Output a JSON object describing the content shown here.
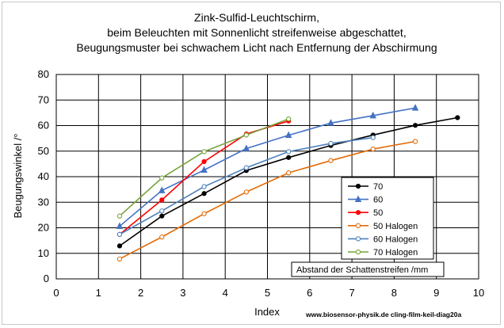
{
  "chart_data": {
    "type": "line",
    "title_lines": [
      "Zink-Sulfid-Leuchtschirm,",
      "beim Beleuchten mit Sonnenlicht streifenweise abgeschattet,",
      "Beugungsmuster bei schwachem Licht nach Entfernung der Abschirmung"
    ],
    "xlabel": "Index",
    "ylabel": "Beugungswinkel /°",
    "xlim": [
      0,
      10
    ],
    "ylim": [
      0,
      80
    ],
    "x_ticks": [
      "0",
      "1",
      "2",
      "3",
      "4",
      "5",
      "6",
      "7",
      "8",
      "9",
      "10"
    ],
    "y_ticks": [
      "0",
      "10",
      "20",
      "30",
      "40",
      "50",
      "60",
      "70",
      "80"
    ],
    "grid": true,
    "legend_position": "right",
    "annotation": "Abstand der Schattenstreifen /mm",
    "footer": "www.biosensor-physik.de  cling-film-keil-diag20a",
    "series": [
      {
        "name": "70",
        "color": "#000000",
        "marker": "circle-filled",
        "x": [
          1.5,
          2.5,
          3.5,
          4.5,
          5.5,
          6.5,
          7.5,
          8.5,
          9.5
        ],
        "y": [
          12.9,
          24.6,
          33.4,
          42.4,
          47.5,
          52.2,
          56.3,
          60.1,
          63.1
        ]
      },
      {
        "name": "60",
        "color": "#4472c4",
        "marker": "triangle-filled",
        "x": [
          1.5,
          2.5,
          3.5,
          4.5,
          5.5,
          6.5,
          7.5,
          8.5
        ],
        "y": [
          20.6,
          34.6,
          42.6,
          51.0,
          56.2,
          61.0,
          63.9,
          66.9
        ]
      },
      {
        "name": "50",
        "color": "#ff0000",
        "marker": "circle-filled",
        "x": [
          1.5,
          2.5,
          3.5,
          4.5,
          5.5
        ],
        "y": [
          17.4,
          30.9,
          45.9,
          56.7,
          61.8
        ]
      },
      {
        "name": "50 Halogen",
        "color": "#e36c09",
        "marker": "circle-open",
        "x": [
          1.5,
          2.5,
          3.5,
          4.5,
          5.5,
          6.5,
          7.5,
          8.5
        ],
        "y": [
          7.8,
          16.4,
          25.5,
          34.0,
          41.5,
          46.3,
          50.8,
          53.8
        ]
      },
      {
        "name": "60 Halogen",
        "color": "#4f81bd",
        "marker": "circle-open",
        "x": [
          1.5,
          2.5,
          3.5,
          4.5,
          5.5,
          6.5,
          7.5
        ],
        "y": [
          17.4,
          26.6,
          36.1,
          43.5,
          49.8,
          53.0,
          55.3
        ]
      },
      {
        "name": "70 Halogen",
        "color": "#77a23a",
        "marker": "circle-open",
        "x": [
          1.5,
          2.5,
          3.5,
          4.5,
          5.5
        ],
        "y": [
          24.6,
          39.5,
          49.8,
          56.3,
          62.6
        ]
      }
    ]
  }
}
